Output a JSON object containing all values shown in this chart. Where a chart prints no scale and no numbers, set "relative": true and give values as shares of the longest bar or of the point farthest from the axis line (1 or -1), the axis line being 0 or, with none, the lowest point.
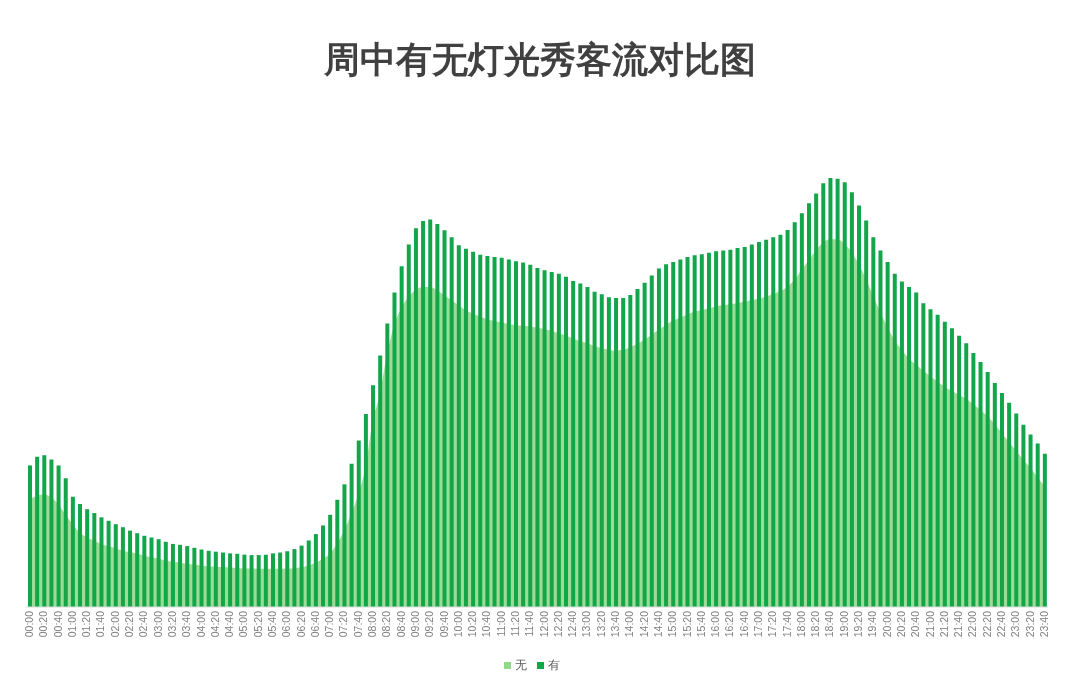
{
  "chart_data": {
    "type": "bar",
    "title": "周中有无灯光秀客流对比图",
    "relative": true,
    "grid": false,
    "legend": "bottom",
    "categories": [
      "00:00",
      null,
      "00:20",
      null,
      "00:40",
      null,
      "01:00",
      null,
      "01:20",
      null,
      "01:40",
      null,
      "02:00",
      null,
      "02:20",
      null,
      "02:40",
      null,
      "03:00",
      null,
      "03:20",
      null,
      "03:40",
      null,
      "04:00",
      null,
      "04:20",
      null,
      "04:40",
      null,
      "05:00",
      null,
      "05:20",
      null,
      "05:40",
      null,
      "06:00",
      null,
      "06:20",
      null,
      "06:40",
      null,
      "07:00",
      null,
      "07:20",
      null,
      "07:40",
      null,
      "08:00",
      null,
      "08:20",
      null,
      "08:40",
      null,
      "09:00",
      null,
      "09:20",
      null,
      "09:40",
      null,
      "10:00",
      null,
      "10:20",
      null,
      "10:40",
      null,
      "11:00",
      null,
      "11:20",
      null,
      "11:40",
      null,
      "12:00",
      null,
      "12:20",
      null,
      "12:40",
      null,
      "13:00",
      null,
      "13:20",
      null,
      "13:40",
      null,
      "14:00",
      null,
      "14:20",
      null,
      "14:40",
      null,
      "15:00",
      null,
      "15:20",
      null,
      "15:40",
      null,
      "16:00",
      null,
      "16:20",
      null,
      "16:40",
      null,
      "17:00",
      null,
      "17:20",
      null,
      "17:40",
      null,
      "18:00",
      null,
      "18:20",
      null,
      "18:40",
      null,
      "19:00",
      null,
      "19:20",
      null,
      "19:40",
      null,
      "20:00",
      null,
      "20:20",
      null,
      "20:40",
      null,
      "21:00",
      null,
      "21:20",
      null,
      "21:40",
      null,
      "22:00",
      null,
      "22:20",
      null,
      "22:40",
      null,
      "23:00",
      null,
      "23:20",
      null,
      "23:40"
    ],
    "series": [
      {
        "name": "无",
        "type": "area",
        "color": "#92d88a",
        "values": [
          0.251,
          0.259,
          0.263,
          0.256,
          0.24,
          0.216,
          0.193,
          0.174,
          0.162,
          0.155,
          0.147,
          0.142,
          0.137,
          0.131,
          0.128,
          0.124,
          0.12,
          0.116,
          0.113,
          0.108,
          0.106,
          0.104,
          0.101,
          0.099,
          0.097,
          0.095,
          0.094,
          0.093,
          0.092,
          0.091,
          0.09,
          0.09,
          0.089,
          0.089,
          0.089,
          0.089,
          0.09,
          0.09,
          0.093,
          0.097,
          0.103,
          0.112,
          0.124,
          0.147,
          0.178,
          0.217,
          0.263,
          0.325,
          0.433,
          0.495,
          0.588,
          0.657,
          0.696,
          0.723,
          0.739,
          0.746,
          0.746,
          0.739,
          0.727,
          0.715,
          0.704,
          0.692,
          0.684,
          0.677,
          0.671,
          0.667,
          0.663,
          0.66,
          0.657,
          0.656,
          0.654,
          0.651,
          0.648,
          0.644,
          0.638,
          0.633,
          0.626,
          0.62,
          0.615,
          0.609,
          0.603,
          0.6,
          0.597,
          0.6,
          0.605,
          0.613,
          0.623,
          0.634,
          0.646,
          0.657,
          0.667,
          0.674,
          0.682,
          0.688,
          0.692,
          0.696,
          0.7,
          0.704,
          0.706,
          0.708,
          0.712,
          0.715,
          0.719,
          0.723,
          0.729,
          0.736,
          0.746,
          0.762,
          0.785,
          0.808,
          0.831,
          0.849,
          0.857,
          0.857,
          0.847,
          0.828,
          0.8,
          0.766,
          0.727,
          0.688,
          0.654,
          0.623,
          0.6,
          0.58,
          0.565,
          0.551,
          0.538,
          0.526,
          0.514,
          0.504,
          0.495,
          0.486,
          0.473,
          0.46,
          0.445,
          0.427,
          0.406,
          0.385,
          0.365,
          0.344,
          0.325,
          0.303,
          0.282
        ]
      },
      {
        "name": "有",
        "color": "#12a54a",
        "values": [
          0.33,
          0.35,
          0.354,
          0.344,
          0.33,
          0.3,
          0.257,
          0.24,
          0.228,
          0.219,
          0.209,
          0.201,
          0.193,
          0.186,
          0.178,
          0.172,
          0.166,
          0.162,
          0.158,
          0.152,
          0.147,
          0.145,
          0.142,
          0.138,
          0.134,
          0.131,
          0.129,
          0.127,
          0.125,
          0.124,
          0.122,
          0.121,
          0.121,
          0.122,
          0.125,
          0.127,
          0.13,
          0.135,
          0.143,
          0.155,
          0.17,
          0.19,
          0.215,
          0.25,
          0.286,
          0.334,
          0.388,
          0.45,
          0.517,
          0.586,
          0.661,
          0.733,
          0.794,
          0.845,
          0.883,
          0.9,
          0.903,
          0.893,
          0.878,
          0.862,
          0.843,
          0.835,
          0.828,
          0.821,
          0.818,
          0.816,
          0.814,
          0.81,
          0.806,
          0.803,
          0.798,
          0.79,
          0.785,
          0.781,
          0.777,
          0.77,
          0.76,
          0.754,
          0.746,
          0.735,
          0.729,
          0.722,
          0.72,
          0.72,
          0.727,
          0.741,
          0.756,
          0.773,
          0.789,
          0.799,
          0.804,
          0.81,
          0.816,
          0.82,
          0.822,
          0.826,
          0.829,
          0.831,
          0.833,
          0.837,
          0.839,
          0.845,
          0.851,
          0.856,
          0.862,
          0.868,
          0.879,
          0.897,
          0.918,
          0.941,
          0.964,
          0.988,
          1.0,
          0.998,
          0.99,
          0.967,
          0.936,
          0.901,
          0.862,
          0.831,
          0.804,
          0.777,
          0.759,
          0.746,
          0.733,
          0.708,
          0.694,
          0.681,
          0.665,
          0.65,
          0.632,
          0.615,
          0.592,
          0.571,
          0.548,
          0.522,
          0.499,
          0.476,
          0.451,
          0.425,
          0.402,
          0.381,
          0.357
        ]
      }
    ]
  }
}
